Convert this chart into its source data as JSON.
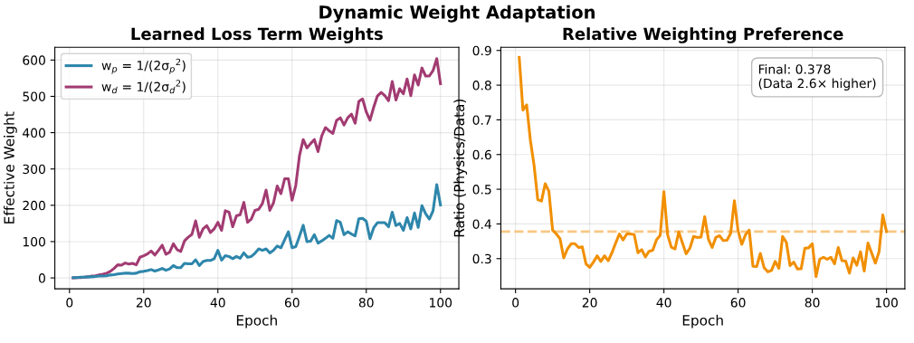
{
  "chart_data": [
    {
      "type": "line",
      "annotations": [
        "Dynamic Weight Adaptation"
      ],
      "title": "Learned Loss Term Weights",
      "xlabel": "Epoch",
      "ylabel": "Effective Weight",
      "x": [
        1,
        2,
        3,
        4,
        5,
        6,
        7,
        8,
        9,
        10,
        11,
        12,
        13,
        14,
        15,
        16,
        17,
        18,
        19,
        20,
        21,
        22,
        23,
        24,
        25,
        26,
        27,
        28,
        29,
        30,
        31,
        32,
        33,
        34,
        35,
        36,
        37,
        38,
        39,
        40,
        41,
        42,
        43,
        44,
        45,
        46,
        47,
        48,
        49,
        50,
        51,
        52,
        53,
        54,
        55,
        56,
        57,
        58,
        59,
        60,
        61,
        62,
        63,
        64,
        65,
        66,
        67,
        68,
        69,
        70,
        71,
        72,
        73,
        74,
        75,
        76,
        77,
        78,
        79,
        80,
        81,
        82,
        83,
        84,
        85,
        86,
        87,
        88,
        89,
        90,
        91,
        92,
        93,
        94,
        95,
        96,
        97,
        98,
        99,
        100
      ],
      "series": [
        {
          "name": "w$_{p}$ = 1/(2σ$_{p}$$^{2}$)",
          "color": "#2e86ab",
          "values": [
            1,
            1,
            2,
            2,
            3,
            3,
            4,
            5,
            5,
            6,
            8,
            9,
            11,
            12,
            13,
            13,
            12,
            13,
            17,
            18,
            20,
            23,
            19,
            22,
            26,
            21,
            25,
            34,
            28,
            28,
            40,
            39,
            39,
            50,
            34,
            45,
            48,
            48,
            53,
            76,
            49,
            61,
            59,
            53,
            59,
            54,
            69,
            57,
            59,
            68,
            80,
            76,
            80,
            69,
            76,
            88,
            83,
            105,
            127,
            83,
            86,
            115,
            145,
            100,
            101,
            119,
            96,
            102,
            109,
            117,
            109,
            158,
            153,
            119,
            127,
            121,
            116,
            163,
            164,
            156,
            108,
            138,
            152,
            152,
            152,
            141,
            181,
            144,
            150,
            131,
            166,
            135,
            179,
            139,
            199,
            177,
            162,
            185,
            257,
            201
          ]
        },
        {
          "name": "w$_{d}$ = 1/(2σ$_{d}$$^{2}$)",
          "color": "#a23b72",
          "values": [
            0,
            1,
            1,
            2,
            3,
            5,
            6,
            8,
            10,
            13,
            18,
            26,
            36,
            35,
            41,
            38,
            40,
            36,
            57,
            61,
            66,
            74,
            63,
            76,
            90,
            65,
            71,
            94,
            78,
            73,
            102,
            112,
            120,
            157,
            112,
            135,
            144,
            125,
            135,
            153,
            131,
            185,
            181,
            141,
            171,
            174,
            208,
            153,
            162,
            186,
            189,
            205,
            242,
            186,
            207,
            253,
            232,
            273,
            273,
            214,
            255,
            337,
            381,
            358,
            370,
            381,
            348,
            391,
            414,
            405,
            398,
            434,
            441,
            421,
            441,
            451,
            426,
            486,
            493,
            457,
            434,
            470,
            501,
            511,
            502,
            488,
            541,
            490,
            521,
            507,
            548,
            502,
            559,
            531,
            578,
            556,
            556,
            571,
            604,
            535
          ]
        }
      ],
      "xlim": [
        -3.95,
        104.95
      ],
      "ylim": [
        -30,
        635
      ],
      "xticks": [
        0,
        20,
        40,
        60,
        80,
        100
      ],
      "yticks": [
        0,
        100,
        200,
        300,
        400,
        500,
        600
      ],
      "grid": true,
      "legend": "top left",
      "marker": "none",
      "line_style": "solid"
    },
    {
      "type": "line",
      "title": "Relative Weighting Preference",
      "xlabel": "Epoch",
      "ylabel": "Ratio (Physics/Data)",
      "x": [
        1,
        2,
        3,
        4,
        5,
        6,
        7,
        8,
        9,
        10,
        11,
        12,
        13,
        14,
        15,
        16,
        17,
        18,
        19,
        20,
        21,
        22,
        23,
        24,
        25,
        26,
        27,
        28,
        29,
        30,
        31,
        32,
        33,
        34,
        35,
        36,
        37,
        38,
        39,
        40,
        41,
        42,
        43,
        44,
        45,
        46,
        47,
        48,
        49,
        50,
        51,
        52,
        53,
        54,
        55,
        56,
        57,
        58,
        59,
        60,
        61,
        62,
        63,
        64,
        65,
        66,
        67,
        68,
        69,
        70,
        71,
        72,
        73,
        74,
        75,
        76,
        77,
        78,
        79,
        80,
        81,
        82,
        83,
        84,
        85,
        86,
        87,
        88,
        89,
        90,
        91,
        92,
        93,
        94,
        95,
        96,
        97,
        98,
        99,
        100
      ],
      "series": [
        {
          "color": "#f18f01",
          "values": [
            0.88,
            0.728,
            0.743,
            0.642,
            0.569,
            0.47,
            0.466,
            0.516,
            0.494,
            0.382,
            0.371,
            0.357,
            0.302,
            0.328,
            0.343,
            0.343,
            0.332,
            0.334,
            0.285,
            0.275,
            0.29,
            0.308,
            0.292,
            0.308,
            0.294,
            0.317,
            0.345,
            0.371,
            0.354,
            0.371,
            0.371,
            0.369,
            0.317,
            0.326,
            0.305,
            0.321,
            0.324,
            0.354,
            0.367,
            0.493,
            0.369,
            0.333,
            0.328,
            0.377,
            0.345,
            0.314,
            0.33,
            0.364,
            0.361,
            0.362,
            0.421,
            0.356,
            0.332,
            0.361,
            0.366,
            0.352,
            0.353,
            0.373,
            0.467,
            0.38,
            0.341,
            0.369,
            0.382,
            0.278,
            0.277,
            0.315,
            0.274,
            0.262,
            0.266,
            0.292,
            0.272,
            0.364,
            0.347,
            0.28,
            0.29,
            0.27,
            0.271,
            0.33,
            0.331,
            0.343,
            0.248,
            0.298,
            0.304,
            0.298,
            0.304,
            0.285,
            0.332,
            0.294,
            0.293,
            0.258,
            0.302,
            0.281,
            0.32,
            0.264,
            0.345,
            0.316,
            0.287,
            0.32,
            0.426,
            0.378
          ]
        }
      ],
      "ref_lines": [
        {
          "axis": "y",
          "value": 0.378,
          "color": "#f8c785",
          "line_style": "dashed"
        }
      ],
      "annotations": [
        "Final: 0.378\n(Data 2.6× higher)"
      ],
      "xlim": [
        -3.95,
        104.95
      ],
      "ylim": [
        0.213,
        0.909
      ],
      "xticks": [
        0,
        20,
        40,
        60,
        80,
        100
      ],
      "yticks": [
        0.3,
        0.4,
        0.5,
        0.6,
        0.7,
        0.8,
        0.9
      ],
      "grid": true,
      "legend": false,
      "marker": "none",
      "line_style": "solid"
    }
  ]
}
